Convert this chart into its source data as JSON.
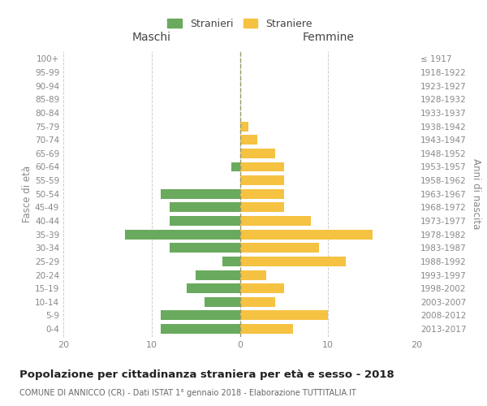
{
  "age_groups": [
    "0-4",
    "5-9",
    "10-14",
    "15-19",
    "20-24",
    "25-29",
    "30-34",
    "35-39",
    "40-44",
    "45-49",
    "50-54",
    "55-59",
    "60-64",
    "65-69",
    "70-74",
    "75-79",
    "80-84",
    "85-89",
    "90-94",
    "95-99",
    "100+"
  ],
  "birth_years": [
    "2013-2017",
    "2008-2012",
    "2003-2007",
    "1998-2002",
    "1993-1997",
    "1988-1992",
    "1983-1987",
    "1978-1982",
    "1973-1977",
    "1968-1972",
    "1963-1967",
    "1958-1962",
    "1953-1957",
    "1948-1952",
    "1943-1947",
    "1938-1942",
    "1933-1937",
    "1928-1932",
    "1923-1927",
    "1918-1922",
    "≤ 1917"
  ],
  "maschi": [
    9,
    9,
    4,
    6,
    5,
    2,
    8,
    13,
    8,
    8,
    9,
    0,
    1,
    0,
    0,
    0,
    0,
    0,
    0,
    0,
    0
  ],
  "femmine": [
    6,
    10,
    4,
    5,
    3,
    12,
    9,
    15,
    8,
    5,
    5,
    5,
    5,
    4,
    2,
    1,
    0,
    0,
    0,
    0,
    0
  ],
  "maschi_color": "#6aaa5e",
  "femmine_color": "#f5c242",
  "title": "Popolazione per cittadinanza straniera per età e sesso - 2018",
  "subtitle": "COMUNE DI ANNICCO (CR) - Dati ISTAT 1° gennaio 2018 - Elaborazione TUTTITALIA.IT",
  "xlabel_left": "Maschi",
  "xlabel_right": "Femmine",
  "ylabel_left": "Fasce di età",
  "ylabel_right": "Anni di nascita",
  "legend_maschi": "Stranieri",
  "legend_femmine": "Straniere",
  "xlim": 20,
  "background_color": "#ffffff",
  "grid_color": "#cccccc",
  "label_color": "#888888"
}
